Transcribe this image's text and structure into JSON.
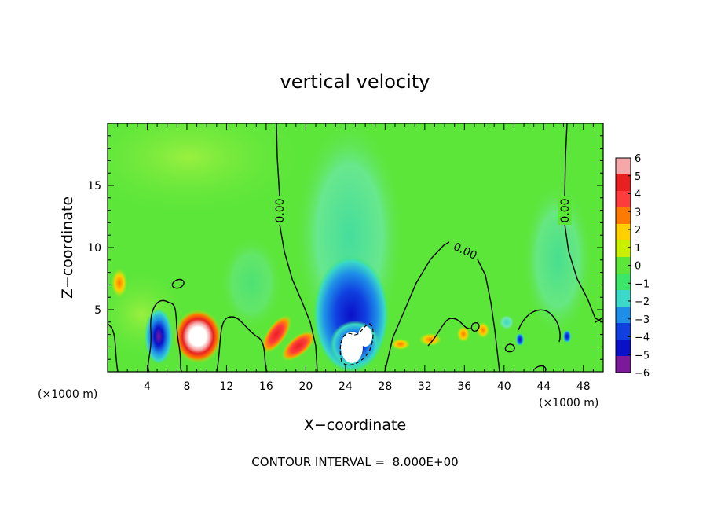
{
  "chart_data": {
    "type": "heatmap",
    "title": "vertical velocity",
    "xlabel": "X−coordinate",
    "ylabel": "Z−coordinate",
    "x_unit_left": "(×1000 m)",
    "x_unit_right": "(×1000 m)",
    "xlim": [
      0,
      50
    ],
    "ylim": [
      0,
      20
    ],
    "x_ticks": [
      4,
      8,
      12,
      16,
      20,
      24,
      28,
      32,
      36,
      40,
      44,
      48
    ],
    "y_ticks": [
      5,
      10,
      15
    ],
    "colorbar": {
      "labels": [
        "6",
        "5",
        "4",
        "3",
        "2",
        "1",
        "0",
        "−1",
        "−2",
        "−3",
        "−4",
        "−5",
        "−6"
      ],
      "colors": [
        "#f4a8a8",
        "#e82020",
        "#ff3c3c",
        "#ff7a00",
        "#ffd000",
        "#c8f000",
        "#5ce63a",
        "#3ce668",
        "#3ad9c8",
        "#1e8ee8",
        "#1040e0",
        "#0a10c8",
        "#7a1a9a"
      ]
    },
    "contour_labels": [
      {
        "text": "0.00"
      },
      {
        "text": "0.00"
      },
      {
        "text": "0.00"
      }
    ],
    "annotation": "CONTOUR INTERVAL =  8.000E+00"
  }
}
